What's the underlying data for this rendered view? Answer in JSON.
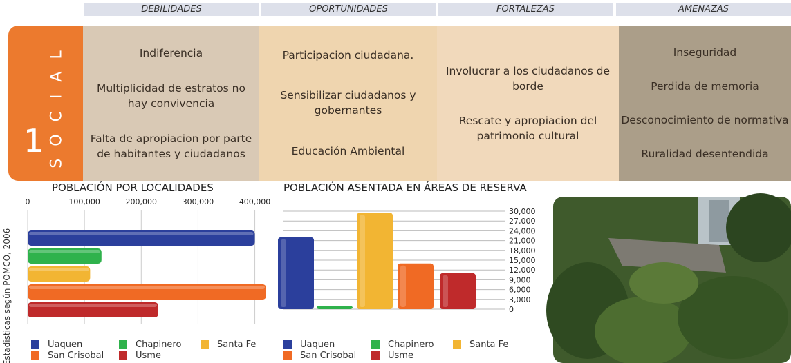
{
  "swot": {
    "headers": [
      "DEBILIDADES",
      "OPORTUNIDADES",
      "FORTALEZAS",
      "AMENAZAS"
    ],
    "number": "1",
    "label": "SOCIAL",
    "cells": [
      [
        "Indiferencia",
        "Multiplicidad de estratos no hay convivencia",
        "Falta de apropiacion por parte de habitantes y ciudadanos"
      ],
      [
        "Participacion ciudadana.",
        "Sensibilizar ciudadanos y gobernantes",
        "Educación Ambiental"
      ],
      [
        "Involucrar a los ciudadanos de borde",
        "Rescate y apropiacion del patrimonio cultural"
      ],
      [
        "Inseguridad",
        "Perdida de memoria",
        "Desconocimiento de normativa",
        "Ruralidad desentendida"
      ]
    ]
  },
  "source_note": "Estadisticas según POMCO, 2006",
  "chart_data": [
    {
      "type": "hbar",
      "title": "POBLACIÓN POR LOCALIDADES",
      "categories": [
        "Uaquen",
        "Chapinero",
        "Santa Fe",
        "San Crisobal",
        "Usme"
      ],
      "values": [
        400000,
        130000,
        110000,
        420000,
        230000
      ],
      "colors": [
        "#2b3f9c",
        "#2fb24c",
        "#f2b533",
        "#f06a24",
        "#bf2a2b"
      ],
      "xlim": [
        0,
        420000
      ],
      "xticks": [
        0,
        {
          "value": 100000,
          "label": "100,000"
        },
        {
          "value": 200000,
          "label": "200,000"
        },
        {
          "value": 300000,
          "label": "300,000"
        },
        {
          "value": 400000,
          "label": "400,000"
        }
      ]
    },
    {
      "type": "bar",
      "title": "POBLACIÓN ASENTADA EN ÁREAS DE RESERVA",
      "categories": [
        "Uaquen",
        "Chapinero",
        "Santa Fe",
        "San Crisobal",
        "Usme"
      ],
      "values": [
        22000,
        1000,
        29500,
        14000,
        11000
      ],
      "colors": [
        "#2b3f9c",
        "#2fb24c",
        "#f2b533",
        "#f06a24",
        "#bf2a2b"
      ],
      "ylim": [
        0,
        30000
      ],
      "yticks": [
        0,
        {
          "value": 3000,
          "label": "3,000"
        },
        {
          "value": 6000,
          "label": "6,000"
        },
        {
          "value": 9000,
          "label": "9,000"
        },
        {
          "value": 12000,
          "label": "12,000"
        },
        {
          "value": 15000,
          "label": "15,000"
        },
        {
          "value": 18000,
          "label": "18,000"
        },
        {
          "value": 21000,
          "label": "21,000"
        },
        {
          "value": 24000,
          "label": "24,000"
        },
        {
          "value": 27000,
          "label": "27,000"
        },
        {
          "value": 30000,
          "label": "30,000"
        }
      ],
      "grid": true
    }
  ]
}
